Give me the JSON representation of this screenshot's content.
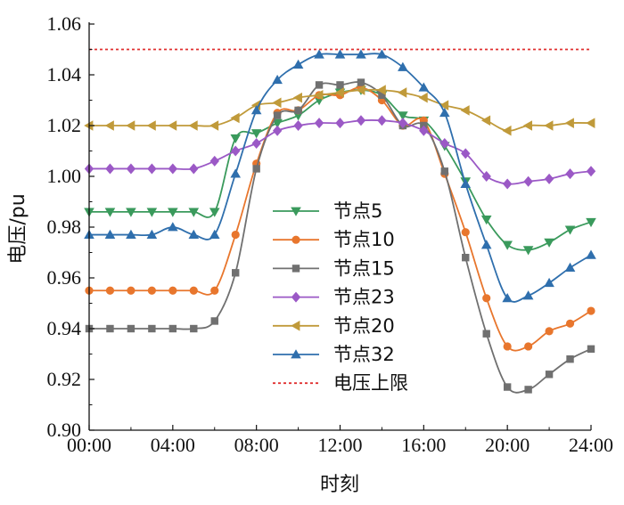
{
  "chart_data": {
    "type": "line",
    "xlabel": "时刻",
    "ylabel": "电压/pu",
    "xlim": [
      0,
      24
    ],
    "ylim": [
      0.9,
      1.06
    ],
    "x_ticks": [
      "00:00",
      "04:00",
      "08:00",
      "12:00",
      "16:00",
      "20:00",
      "24:00"
    ],
    "y_ticks": [
      "0.90",
      "0.92",
      "0.94",
      "0.96",
      "0.98",
      "1.00",
      "1.02",
      "1.04",
      "1.06"
    ],
    "legend_position": "center-left",
    "grid": false,
    "x": [
      0,
      1,
      2,
      3,
      4,
      5,
      6,
      7,
      8,
      9,
      10,
      11,
      12,
      13,
      14,
      15,
      16,
      17,
      18,
      19,
      20,
      21,
      22,
      23,
      24
    ],
    "series": [
      {
        "name": "节点5",
        "color": "#3a9a5c",
        "marker": "triangle-down",
        "values": [
          0.986,
          0.986,
          0.986,
          0.986,
          0.986,
          0.986,
          0.986,
          1.015,
          1.017,
          1.021,
          1.024,
          1.03,
          1.033,
          1.034,
          1.032,
          1.024,
          1.022,
          1.012,
          0.998,
          0.983,
          0.973,
          0.971,
          0.974,
          0.979,
          0.982
        ]
      },
      {
        "name": "节点10",
        "color": "#e8762d",
        "marker": "circle",
        "values": [
          0.955,
          0.955,
          0.955,
          0.955,
          0.955,
          0.955,
          0.955,
          0.977,
          1.005,
          1.025,
          1.026,
          1.032,
          1.032,
          1.035,
          1.03,
          1.02,
          1.022,
          1.001,
          0.978,
          0.952,
          0.933,
          0.933,
          0.939,
          0.942,
          0.947
        ]
      },
      {
        "name": "节点15",
        "color": "#707070",
        "marker": "square",
        "values": [
          0.94,
          0.94,
          0.94,
          0.94,
          0.94,
          0.94,
          0.943,
          0.962,
          1.003,
          1.024,
          1.026,
          1.036,
          1.036,
          1.037,
          1.032,
          1.02,
          1.02,
          1.002,
          0.968,
          0.938,
          0.917,
          0.916,
          0.922,
          0.928,
          0.932
        ]
      },
      {
        "name": "节点23",
        "color": "#9b59c6",
        "marker": "diamond",
        "values": [
          1.003,
          1.003,
          1.003,
          1.003,
          1.003,
          1.003,
          1.006,
          1.01,
          1.013,
          1.018,
          1.02,
          1.021,
          1.021,
          1.022,
          1.022,
          1.021,
          1.018,
          1.013,
          1.009,
          1.0,
          0.997,
          0.998,
          0.999,
          1.001,
          1.002
        ]
      },
      {
        "name": "节点20",
        "color": "#c09a3a",
        "marker": "triangle-left",
        "values": [
          1.02,
          1.02,
          1.02,
          1.02,
          1.02,
          1.02,
          1.02,
          1.023,
          1.028,
          1.029,
          1.031,
          1.032,
          1.033,
          1.034,
          1.034,
          1.033,
          1.031,
          1.028,
          1.026,
          1.022,
          1.018,
          1.02,
          1.02,
          1.021,
          1.021
        ]
      },
      {
        "name": "节点32",
        "color": "#2f6fad",
        "marker": "triangle-up",
        "values": [
          0.977,
          0.977,
          0.977,
          0.977,
          0.98,
          0.977,
          0.977,
          1.001,
          1.026,
          1.038,
          1.044,
          1.048,
          1.048,
          1.048,
          1.048,
          1.043,
          1.035,
          1.025,
          0.997,
          0.973,
          0.952,
          0.953,
          0.958,
          0.964,
          0.969
        ]
      },
      {
        "name": "电压上限",
        "color": "#e03030",
        "marker": "none",
        "style": "dotted",
        "values": [
          1.05,
          1.05,
          1.05,
          1.05,
          1.05,
          1.05,
          1.05,
          1.05,
          1.05,
          1.05,
          1.05,
          1.05,
          1.05,
          1.05,
          1.05,
          1.05,
          1.05,
          1.05,
          1.05,
          1.05,
          1.05,
          1.05,
          1.05,
          1.05,
          1.05
        ]
      }
    ]
  }
}
